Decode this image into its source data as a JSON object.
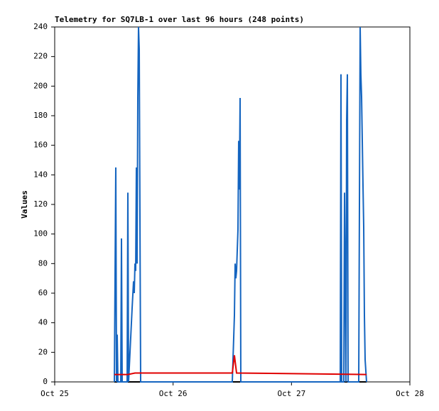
{
  "chart_data": {
    "type": "line",
    "title": "Telemetry for SQ7LB-1 over last 96 hours (248 points)",
    "y_label": "Values",
    "xlim": [
      0,
      3
    ],
    "xticks": [
      {
        "value": 0,
        "label": "Oct 25"
      },
      {
        "value": 1,
        "label": "Oct 26"
      },
      {
        "value": 2,
        "label": "Oct 27"
      },
      {
        "value": 3,
        "label": "Oct 28"
      }
    ],
    "ylim": [
      0,
      240
    ],
    "yticks": [
      0,
      20,
      40,
      60,
      80,
      100,
      120,
      140,
      160,
      180,
      200,
      220,
      240
    ],
    "grid": false,
    "series": [
      {
        "color": "#000000",
        "x": [
          0.504,
          2.634
        ],
        "values": [
          0,
          0
        ]
      },
      {
        "color": "#1565c0",
        "x": [
          0.504,
          0.516,
          0.522,
          0.528,
          0.534,
          0.558,
          0.564,
          0.57,
          0.612,
          0.618,
          0.624,
          0.63,
          0.642,
          0.654,
          0.666,
          0.672,
          0.678,
          0.684,
          0.69,
          0.696,
          0.702,
          0.708,
          0.714,
          0.72,
          0.726,
          1.5,
          1.512,
          1.518,
          1.524,
          1.53,
          1.536,
          1.548,
          1.554,
          1.56,
          1.566,
          1.572,
          2.412,
          2.418,
          2.424,
          2.442,
          2.448,
          2.454,
          2.46,
          2.466,
          2.472,
          2.478,
          2.568,
          2.58,
          2.586,
          2.592,
          2.598,
          2.604,
          2.61,
          2.616,
          2.622,
          2.634
        ],
        "values": [
          0,
          145,
          0,
          32,
          0,
          0,
          97,
          0,
          0,
          128,
          0,
          10,
          30,
          50,
          68,
          60,
          80,
          75,
          145,
          80,
          192,
          240,
          225,
          112,
          0,
          0,
          30,
          45,
          80,
          70,
          75,
          103,
          163,
          130,
          192,
          0,
          0,
          208,
          0,
          0,
          128,
          65,
          0,
          177,
          208,
          0,
          0,
          240,
          208,
          193,
          163,
          133,
          105,
          45,
          15,
          0
        ]
      },
      {
        "color": "#e00000",
        "x": [
          0.504,
          0.618,
          0.678,
          1.5,
          1.518,
          1.536,
          2.634
        ],
        "values": [
          5,
          5,
          6,
          6,
          18,
          6,
          5
        ]
      }
    ]
  }
}
